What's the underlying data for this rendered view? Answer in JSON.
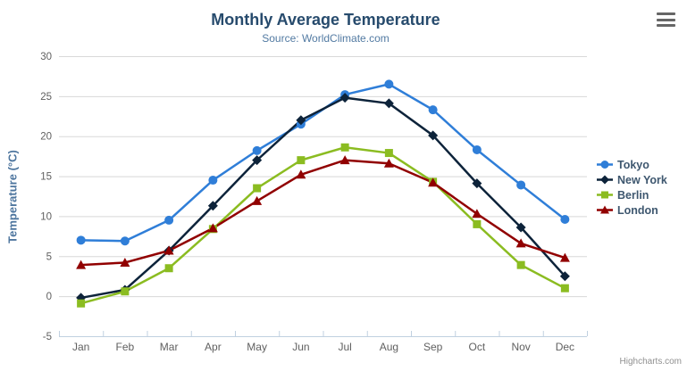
{
  "chart": {
    "credit": "Highcharts.com",
    "context_menu_icon": "hamburger-icon"
  },
  "chart_data": {
    "type": "line",
    "title": "Monthly Average Temperature",
    "subtitle": "Source: WorldClimate.com",
    "xlabel": "",
    "ylabel": "Temperature (°C)",
    "categories": [
      "Jan",
      "Feb",
      "Mar",
      "Apr",
      "May",
      "Jun",
      "Jul",
      "Aug",
      "Sep",
      "Oct",
      "Nov",
      "Dec"
    ],
    "ylim": [
      -5,
      30
    ],
    "ytick_interval": 5,
    "yticks": [
      -5,
      0,
      5,
      10,
      15,
      20,
      25,
      30
    ],
    "grid": true,
    "legend_position": "right",
    "series": [
      {
        "name": "Tokyo",
        "color": "#2f7ed8",
        "marker": "circle",
        "values": [
          7.0,
          6.9,
          9.5,
          14.5,
          18.2,
          21.5,
          25.2,
          26.5,
          23.3,
          18.3,
          13.9,
          9.6
        ]
      },
      {
        "name": "New York",
        "color": "#0d233a",
        "marker": "diamond",
        "values": [
          -0.2,
          0.8,
          5.7,
          11.3,
          17.0,
          22.0,
          24.8,
          24.1,
          20.1,
          14.1,
          8.6,
          2.5
        ]
      },
      {
        "name": "Berlin",
        "color": "#8bbc21",
        "marker": "square",
        "values": [
          -0.9,
          0.6,
          3.5,
          8.4,
          13.5,
          17.0,
          18.6,
          17.9,
          14.3,
          9.0,
          3.9,
          1.0
        ]
      },
      {
        "name": "London",
        "color": "#910000",
        "marker": "triangle",
        "values": [
          3.9,
          4.2,
          5.7,
          8.5,
          11.9,
          15.2,
          17.0,
          16.6,
          14.2,
          10.3,
          6.6,
          4.8
        ]
      }
    ],
    "colors": {
      "grid": "#d8d8d8",
      "axis_line": "#c0d0e0",
      "tick_label": "#606060",
      "title": "#274b6d",
      "subtitle": "#527aa2",
      "axis_title": "#4d759e",
      "legend_text": "#3e576f",
      "credit": "#909090",
      "menu_icon": "#666666"
    }
  }
}
